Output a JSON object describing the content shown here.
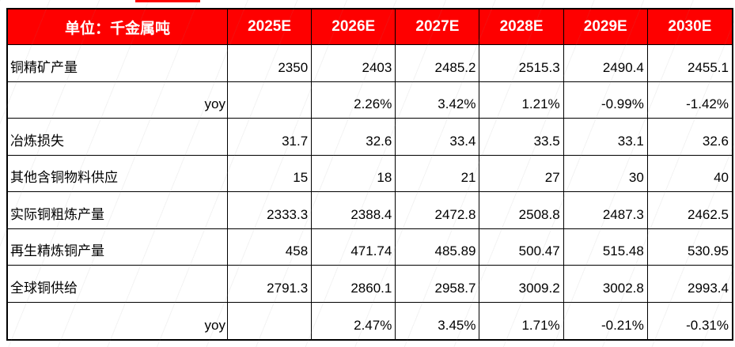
{
  "chart_data": {
    "type": "table",
    "unit_label": "单位：千金属吨",
    "columns": [
      "2025E",
      "2026E",
      "2027E",
      "2028E",
      "2029E",
      "2030E"
    ],
    "rows": [
      {
        "label": "铜精矿产量",
        "values": [
          "2350",
          "2403",
          "2485.2",
          "2515.3",
          "2490.4",
          "2455.1"
        ]
      },
      {
        "label": "yoy",
        "values": [
          "",
          "2.26%",
          "3.42%",
          "1.21%",
          "-0.99%",
          "-1.42%"
        ]
      },
      {
        "label": "冶炼损失",
        "values": [
          "31.7",
          "32.6",
          "33.4",
          "33.5",
          "33.1",
          "32.6"
        ]
      },
      {
        "label": "其他含铜物料供应",
        "values": [
          "15",
          "18",
          "21",
          "27",
          "30",
          "40"
        ]
      },
      {
        "label": "实际铜粗炼产量",
        "values": [
          "2333.3",
          "2388.4",
          "2472.8",
          "2508.8",
          "2487.3",
          "2462.5"
        ]
      },
      {
        "label": "再生精炼铜产量",
        "values": [
          "458",
          "471.74",
          "485.89",
          "500.47",
          "515.48",
          "530.95"
        ]
      },
      {
        "label": "全球铜供给",
        "values": [
          "2791.3",
          "2860.1",
          "2958.7",
          "3009.2",
          "3002.8",
          "2993.4"
        ]
      },
      {
        "label": "yoy",
        "values": [
          "",
          "2.47%",
          "3.45%",
          "1.71%",
          "-0.21%",
          "-0.31%"
        ]
      }
    ],
    "colors": {
      "header_bg": "#fe0000",
      "header_text": "#ffffff",
      "body_text": "#000000",
      "border": "#000000"
    },
    "layout_hints": {
      "header_position": "top",
      "value_alignment": "right",
      "grid": "on"
    }
  }
}
